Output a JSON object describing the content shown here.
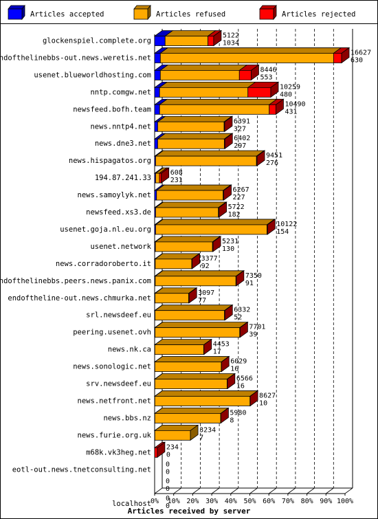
{
  "chart_data": {
    "type": "bar",
    "orientation": "horizontal",
    "stacked": true,
    "style": "3d",
    "xlabel": "Articles received by server",
    "xlim": [
      0,
      100
    ],
    "x_unit": "%",
    "x_ticks": [
      "0%",
      "10%",
      "20%",
      "30%",
      "40%",
      "50%",
      "60%",
      "70%",
      "80%",
      "90%",
      "100%"
    ],
    "grid": "vertical dashed",
    "legend_position": "top",
    "series": [
      {
        "name": "Articles accepted",
        "color": "#0000ff"
      },
      {
        "name": "Articles refused",
        "color": "#ffaa00"
      },
      {
        "name": "Articles rejected",
        "color": "#ff0000"
      }
    ],
    "rows": [
      {
        "server": "glockenspiel.complete.org",
        "total": "5122",
        "second": "1034",
        "pct": [
          5.5,
          22.5,
          3.0
        ]
      },
      {
        "server": "endofthelinebbs-out.news.weretis.net",
        "total": "16627",
        "second": "630",
        "pct": [
          3.0,
          91.0,
          4.2
        ]
      },
      {
        "server": "usenet.blueworldhosting.com",
        "total": "8446",
        "second": "553",
        "pct": [
          3.0,
          41.5,
          6.2
        ]
      },
      {
        "server": "nntp.comgw.net",
        "total": "10259",
        "second": "480",
        "pct": [
          2.6,
          46.4,
          12.0
        ]
      },
      {
        "server": "newsfeed.bofh.team",
        "total": "10490",
        "second": "431",
        "pct": [
          2.6,
          57.6,
          3.5
        ]
      },
      {
        "server": "news.nntp4.net",
        "total": "6391",
        "second": "327",
        "pct": [
          1.6,
          34.9,
          0.3
        ]
      },
      {
        "server": "news.dne3.net",
        "total": "6402",
        "second": "297",
        "pct": [
          1.6,
          35.0,
          0.3
        ]
      },
      {
        "server": "news.hispagatos.org",
        "total": "9451",
        "second": "276",
        "pct": [
          0.5,
          53.0,
          0.3
        ]
      },
      {
        "server": "194.87.241.33",
        "total": "608",
        "second": "231",
        "pct": [
          0.5,
          2.0,
          1.0
        ]
      },
      {
        "server": "news.samoylyk.net",
        "total": "6267",
        "second": "227",
        "pct": [
          1.0,
          35.0,
          0.3
        ]
      },
      {
        "server": "newsfeed.xs3.de",
        "total": "5722",
        "second": "182",
        "pct": [
          0.5,
          33.0,
          0.3
        ]
      },
      {
        "server": "usenet.goja.nl.eu.org",
        "total": "10122",
        "second": "154",
        "pct": [
          0.5,
          58.5,
          0.3
        ]
      },
      {
        "server": "usenet.network",
        "total": "5231",
        "second": "130",
        "pct": [
          0.4,
          30.0,
          0.3
        ]
      },
      {
        "server": "news.corradoroberto.it",
        "total": "3377",
        "second": "92",
        "pct": [
          0.3,
          19.2,
          0.2
        ]
      },
      {
        "server": "endofthelinebbs.peers.news.panix.com",
        "total": "7350",
        "second": "91",
        "pct": [
          0.3,
          42.4,
          0.2
        ]
      },
      {
        "server": "endoftheline-out.news.chmurka.net",
        "total": "3097",
        "second": "77",
        "pct": [
          0.2,
          17.7,
          0.2
        ]
      },
      {
        "server": "srl.newsdeef.eu",
        "total": "6332",
        "second": "52",
        "pct": [
          0.2,
          36.5,
          0.2
        ]
      },
      {
        "server": "peering.usenet.ovh",
        "total": "7701",
        "second": "39",
        "pct": [
          0.2,
          44.5,
          0.2
        ]
      },
      {
        "server": "news.nk.ca",
        "total": "4453",
        "second": "17",
        "pct": [
          0.1,
          25.7,
          0.1
        ]
      },
      {
        "server": "news.sonologic.net",
        "total": "6029",
        "second": "16",
        "pct": [
          0.1,
          34.9,
          0.1
        ]
      },
      {
        "server": "srv.newsdeef.eu",
        "total": "6566",
        "second": "16",
        "pct": [
          0.1,
          38.0,
          0.1
        ]
      },
      {
        "server": "news.netfront.net",
        "total": "8627",
        "second": "10",
        "pct": [
          0.1,
          50.0,
          0.1
        ]
      },
      {
        "server": "news.bbs.nz",
        "total": "5980",
        "second": "8",
        "pct": [
          0.1,
          34.6,
          0.1
        ]
      },
      {
        "server": "news.furie.org.uk",
        "total": "3234",
        "second": "7",
        "pct": [
          0.1,
          18.7,
          0.0
        ]
      },
      {
        "server": "m68k.vk3heg.net",
        "total": "234",
        "second": "0",
        "pct": [
          0.0,
          0.0,
          1.4
        ]
      },
      {
        "server": "eotl-out.news.tnetconsulting.net",
        "total": "0",
        "second": "0",
        "pct": [
          0.0,
          0.0,
          0.0
        ]
      },
      {
        "server": "",
        "total": "0",
        "second": "0",
        "pct": [
          0.0,
          0.0,
          0.0
        ]
      },
      {
        "server": "localhost",
        "total": "0",
        "second": "0",
        "pct": [
          0.0,
          0.0,
          0.0
        ]
      }
    ]
  }
}
